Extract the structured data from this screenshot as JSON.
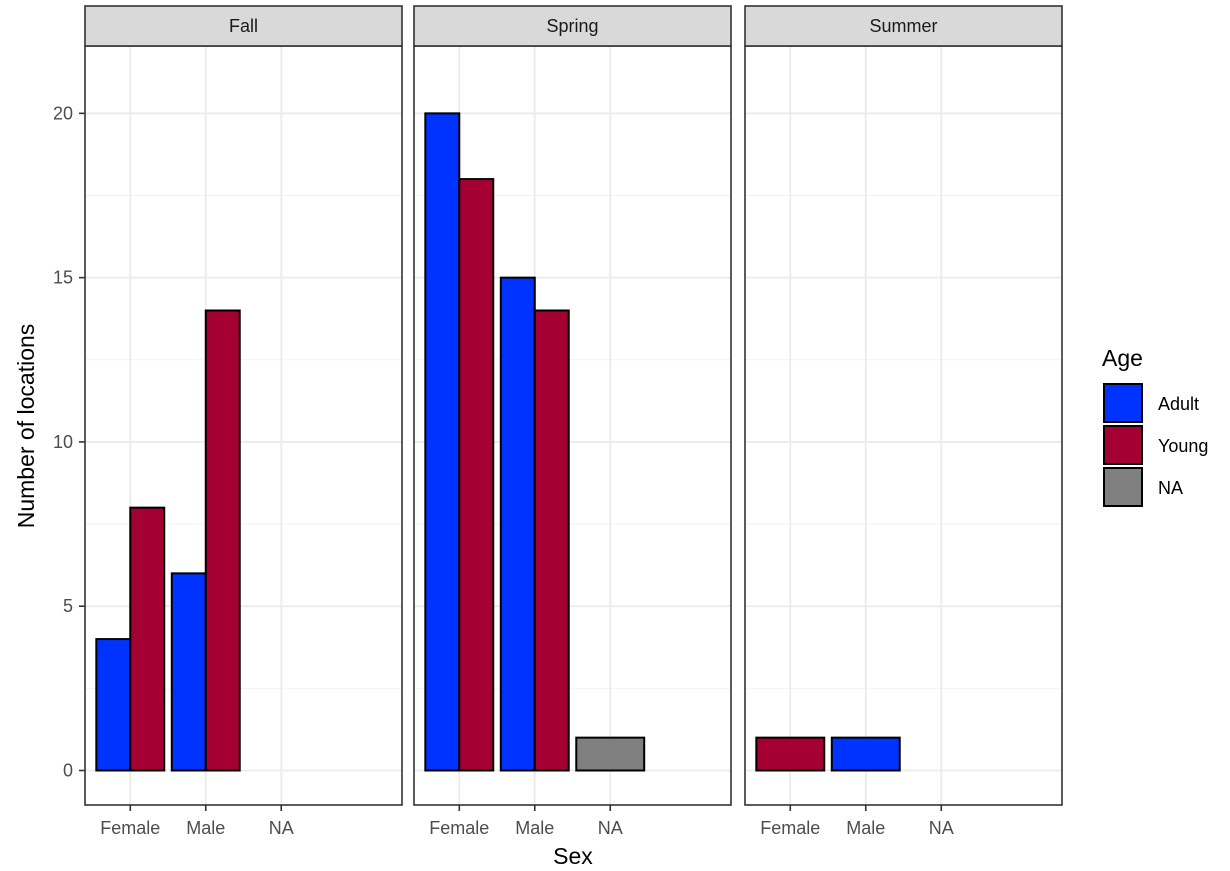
{
  "chart_data": {
    "type": "bar",
    "facet_by": "season",
    "facets": [
      "Fall",
      "Spring",
      "Summer"
    ],
    "categories": [
      "Female",
      "Male",
      "NA"
    ],
    "xlabel": "Sex",
    "ylabel": "Number of locations",
    "ylim": [
      -1.05,
      22.05
    ],
    "yticks": [
      0,
      5,
      10,
      15,
      20
    ],
    "grid": true,
    "legend": {
      "title": "Age",
      "position": "right",
      "entries": [
        {
          "key": "Adult",
          "label": "Adult",
          "color": "#0033FF"
        },
        {
          "key": "Young",
          "label": "Young",
          "color": "#A50034"
        },
        {
          "key": "NA",
          "label": "NA",
          "color": "#808080"
        }
      ]
    },
    "panels": [
      {
        "facet": "Fall",
        "groups": [
          {
            "category": "Female",
            "bars": [
              {
                "age": "Adult",
                "value": 4
              },
              {
                "age": "Young",
                "value": 8
              }
            ]
          },
          {
            "category": "Male",
            "bars": [
              {
                "age": "Adult",
                "value": 6
              },
              {
                "age": "Young",
                "value": 14
              }
            ]
          },
          {
            "category": "NA",
            "bars": []
          }
        ]
      },
      {
        "facet": "Spring",
        "groups": [
          {
            "category": "Female",
            "bars": [
              {
                "age": "Adult",
                "value": 20
              },
              {
                "age": "Young",
                "value": 18
              }
            ]
          },
          {
            "category": "Male",
            "bars": [
              {
                "age": "Adult",
                "value": 15
              },
              {
                "age": "Young",
                "value": 14
              }
            ]
          },
          {
            "category": "NA",
            "bars": [
              {
                "age": "NA",
                "value": 1
              }
            ]
          }
        ]
      },
      {
        "facet": "Summer",
        "groups": [
          {
            "category": "Female",
            "bars": [
              {
                "age": "Young",
                "value": 1
              }
            ]
          },
          {
            "category": "Male",
            "bars": [
              {
                "age": "Adult",
                "value": 1
              }
            ]
          },
          {
            "category": "NA",
            "bars": []
          }
        ]
      }
    ]
  }
}
